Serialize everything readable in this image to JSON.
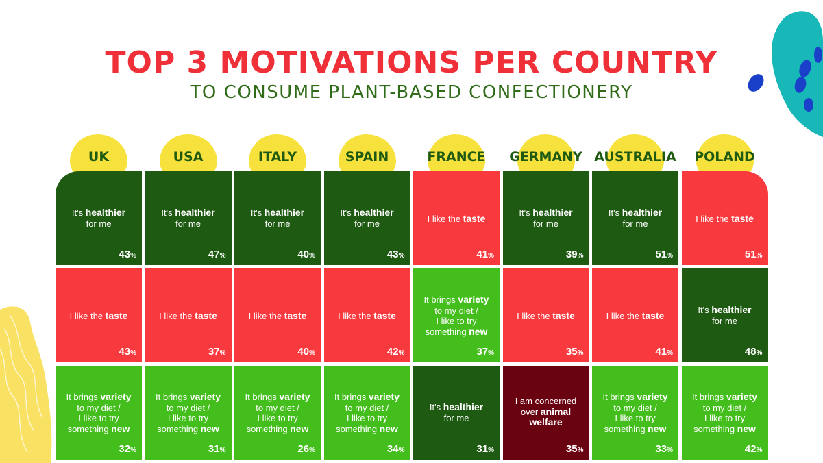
{
  "title": "TOP 3 MOTIVATIONS PER COUNTRY",
  "subtitle": "TO CONSUME PLANT-BASED CONFECTIONERY",
  "colors": {
    "healthier": "#1e5a12",
    "taste": "#f83a3f",
    "variety": "#44be1d",
    "animal_welfare": "#6a0311",
    "badge": "#f7e23d",
    "title": "#f03038",
    "subtitle": "#2f6b19"
  },
  "motivations": {
    "healthier": {
      "pre": "It's ",
      "bold": "healthier",
      "post": "for me"
    },
    "taste": {
      "pre": "I like the ",
      "bold": "taste"
    },
    "variety": {
      "pre": "It brings ",
      "bold": "variety",
      "mid1": "to my diet /",
      "mid2": "I like to try",
      "mid3": "something ",
      "bold2": "new"
    },
    "animal_welfare": {
      "line1": "I am concerned",
      "line2": "over ",
      "bold": "animal",
      "bold2": "welfare"
    }
  },
  "chart_data": {
    "type": "table",
    "title": "TOP 3 MOTIVATIONS PER COUNTRY",
    "subtitle": "TO CONSUME PLANT-BASED CONFECTIONERY",
    "unit": "%",
    "countries": [
      {
        "name": "UK",
        "top3": [
          {
            "motivation": "healthier",
            "value": 43
          },
          {
            "motivation": "taste",
            "value": 43
          },
          {
            "motivation": "variety",
            "value": 32
          }
        ]
      },
      {
        "name": "USA",
        "top3": [
          {
            "motivation": "healthier",
            "value": 47
          },
          {
            "motivation": "taste",
            "value": 37
          },
          {
            "motivation": "variety",
            "value": 31
          }
        ]
      },
      {
        "name": "ITALY",
        "top3": [
          {
            "motivation": "healthier",
            "value": 40
          },
          {
            "motivation": "taste",
            "value": 40
          },
          {
            "motivation": "variety",
            "value": 26
          }
        ]
      },
      {
        "name": "SPAIN",
        "top3": [
          {
            "motivation": "healthier",
            "value": 43
          },
          {
            "motivation": "taste",
            "value": 42
          },
          {
            "motivation": "variety",
            "value": 34
          }
        ]
      },
      {
        "name": "FRANCE",
        "top3": [
          {
            "motivation": "taste",
            "value": 41
          },
          {
            "motivation": "variety",
            "value": 37
          },
          {
            "motivation": "healthier",
            "value": 31
          }
        ]
      },
      {
        "name": "GERMANY",
        "top3": [
          {
            "motivation": "healthier",
            "value": 39
          },
          {
            "motivation": "taste",
            "value": 35
          },
          {
            "motivation": "animal_welfare",
            "value": 35
          }
        ]
      },
      {
        "name": "AUSTRALIA",
        "top3": [
          {
            "motivation": "healthier",
            "value": 51
          },
          {
            "motivation": "taste",
            "value": 41
          },
          {
            "motivation": "variety",
            "value": 33
          }
        ]
      },
      {
        "name": "POLAND",
        "top3": [
          {
            "motivation": "taste",
            "value": 51
          },
          {
            "motivation": "healthier",
            "value": 48
          },
          {
            "motivation": "variety",
            "value": 42
          }
        ]
      }
    ]
  }
}
